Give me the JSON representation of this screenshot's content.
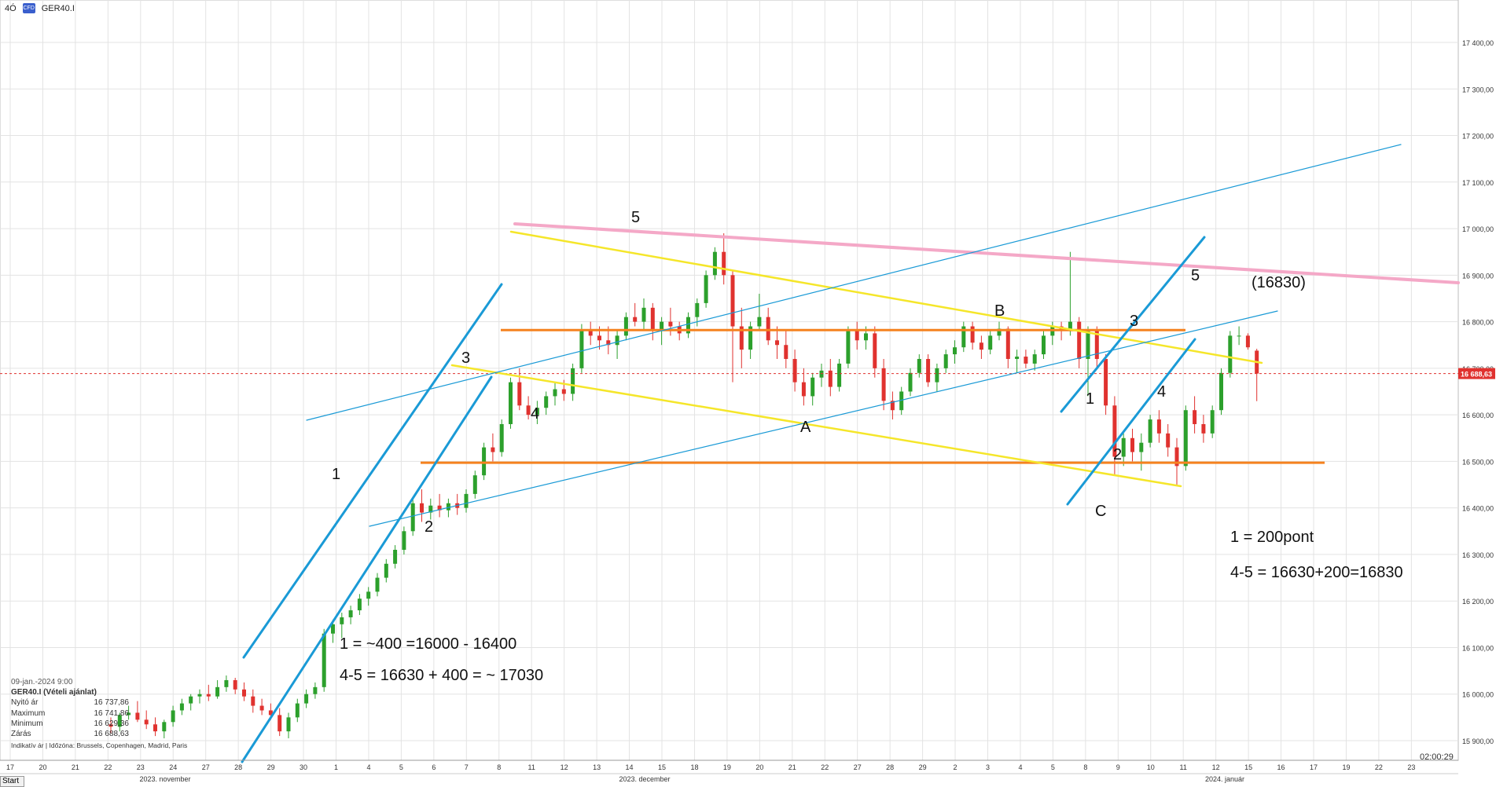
{
  "window": {
    "timeframe": "4Ó",
    "symbol": "GER40.I",
    "logo_icon": "cfd-logo-icon",
    "clock": "02:00:29",
    "start_button": "Start"
  },
  "info_panel": {
    "datetime": "09-jan.-2024 9:00",
    "instrument": "GER40.I (Vételi ajánlat)",
    "rows": [
      {
        "label": "Nyitó ár",
        "value": "16 737,86"
      },
      {
        "label": "Maximum",
        "value": "16 741,86"
      },
      {
        "label": "Minimum",
        "value": "16 629,36"
      },
      {
        "label": "Zárás",
        "value": "16 688,63"
      }
    ],
    "footer": "Indikatív ár | Időzóna: Brussels, Copenhagen, Madrid, Paris"
  },
  "chart_data": {
    "type": "candlestick",
    "symbol": "GER40.I",
    "price_axis": {
      "min": 15850,
      "max": 17450,
      "ticks": [
        15900,
        16000,
        16100,
        16200,
        16300,
        16400,
        16500,
        16600,
        16700,
        16800,
        16900,
        17000,
        17100,
        17200,
        17300,
        17400
      ],
      "tick_labels": [
        "15 900,00",
        "16 000,00",
        "16 100,00",
        "16 200,00",
        "16 300,00",
        "16 400,00",
        "16 500,00",
        "16 600,00",
        "16 700,00",
        "16 800,00",
        "16 900,00",
        "17 000,00",
        "17 100,00",
        "17 200,00",
        "17 300,00",
        "17 400,00"
      ]
    },
    "time_axis": {
      "day_labels": [
        "17",
        "20",
        "21",
        "22",
        "23",
        "24",
        "27",
        "28",
        "29",
        "30",
        "1",
        "4",
        "5",
        "6",
        "7",
        "8",
        "11",
        "12",
        "13",
        "14",
        "15",
        "18",
        "19",
        "20",
        "21",
        "22",
        "27",
        "28",
        "29",
        "2",
        "3",
        "4",
        "5",
        "8",
        "9",
        "10",
        "11",
        "12",
        "15",
        "16",
        "17",
        "19",
        "22",
        "23"
      ],
      "month_labels": [
        "2023. november",
        "2023. december",
        "2024. január"
      ]
    },
    "current_price": 16688.63,
    "current_price_label": "16 688,63",
    "candles": [
      [
        0,
        15935,
        15950,
        15915,
        15930
      ],
      [
        1,
        15930,
        15960,
        15920,
        15955
      ],
      [
        2,
        15955,
        15975,
        15945,
        15960
      ],
      [
        3,
        15960,
        15985,
        15940,
        15945
      ],
      [
        4,
        15945,
        15965,
        15925,
        15935
      ],
      [
        5,
        15935,
        15950,
        15910,
        15920
      ],
      [
        6,
        15920,
        15945,
        15905,
        15940
      ],
      [
        7,
        15940,
        15975,
        15930,
        15965
      ],
      [
        8,
        15965,
        15990,
        15955,
        15980
      ],
      [
        9,
        15980,
        16000,
        15965,
        15995
      ],
      [
        10,
        15995,
        16010,
        15980,
        16000
      ],
      [
        11,
        16000,
        16020,
        15985,
        15995
      ],
      [
        12,
        15995,
        16030,
        15990,
        16015
      ],
      [
        13,
        16015,
        16040,
        16005,
        16030
      ],
      [
        14,
        16030,
        16035,
        16000,
        16010
      ],
      [
        15,
        16010,
        16025,
        15985,
        15995
      ],
      [
        16,
        15995,
        16010,
        15960,
        15975
      ],
      [
        17,
        15975,
        15990,
        15955,
        15965
      ],
      [
        18,
        15965,
        15980,
        15945,
        15955
      ],
      [
        19,
        15955,
        15970,
        15910,
        15920
      ],
      [
        20,
        15920,
        15960,
        15905,
        15950
      ],
      [
        21,
        15950,
        15990,
        15940,
        15980
      ],
      [
        22,
        15980,
        16010,
        15970,
        16000
      ],
      [
        23,
        16000,
        16025,
        15990,
        16015
      ],
      [
        24,
        16015,
        16140,
        16005,
        16130
      ],
      [
        25,
        16130,
        16160,
        16110,
        16150
      ],
      [
        26,
        16150,
        16175,
        16120,
        16165
      ],
      [
        27,
        16165,
        16190,
        16150,
        16180
      ],
      [
        28,
        16180,
        16215,
        16170,
        16205
      ],
      [
        29,
        16205,
        16230,
        16190,
        16220
      ],
      [
        30,
        16220,
        16260,
        16210,
        16250
      ],
      [
        31,
        16250,
        16290,
        16240,
        16280
      ],
      [
        32,
        16280,
        16320,
        16270,
        16310
      ],
      [
        33,
        16310,
        16360,
        16300,
        16350
      ],
      [
        34,
        16350,
        16420,
        16340,
        16410
      ],
      [
        35,
        16410,
        16440,
        16370,
        16390
      ],
      [
        36,
        16390,
        16420,
        16375,
        16405
      ],
      [
        37,
        16405,
        16430,
        16380,
        16395
      ],
      [
        38,
        16395,
        16420,
        16380,
        16410
      ],
      [
        39,
        16410,
        16430,
        16385,
        16400
      ],
      [
        40,
        16400,
        16440,
        16390,
        16430
      ],
      [
        41,
        16430,
        16480,
        16420,
        16470
      ],
      [
        42,
        16470,
        16540,
        16460,
        16530
      ],
      [
        43,
        16530,
        16560,
        16500,
        16520
      ],
      [
        44,
        16520,
        16590,
        16510,
        16580
      ],
      [
        45,
        16580,
        16680,
        16570,
        16670
      ],
      [
        46,
        16670,
        16700,
        16610,
        16620
      ],
      [
        47,
        16620,
        16640,
        16590,
        16600
      ],
      [
        48,
        16600,
        16630,
        16580,
        16615
      ],
      [
        49,
        16615,
        16650,
        16600,
        16640
      ],
      [
        50,
        16640,
        16670,
        16620,
        16655
      ],
      [
        51,
        16655,
        16675,
        16630,
        16645
      ],
      [
        52,
        16645,
        16710,
        16630,
        16700
      ],
      [
        53,
        16700,
        16795,
        16690,
        16780
      ],
      [
        54,
        16780,
        16800,
        16750,
        16770
      ],
      [
        55,
        16770,
        16790,
        16740,
        16760
      ],
      [
        56,
        16760,
        16790,
        16730,
        16750
      ],
      [
        57,
        16750,
        16780,
        16720,
        16770
      ],
      [
        58,
        16770,
        16820,
        16760,
        16810
      ],
      [
        59,
        16810,
        16840,
        16790,
        16800
      ],
      [
        60,
        16800,
        16850,
        16780,
        16830
      ],
      [
        61,
        16830,
        16840,
        16760,
        16780
      ],
      [
        62,
        16780,
        16810,
        16750,
        16800
      ],
      [
        63,
        16800,
        16830,
        16770,
        16790
      ],
      [
        64,
        16790,
        16800,
        16760,
        16775
      ],
      [
        65,
        16775,
        16820,
        16765,
        16810
      ],
      [
        66,
        16810,
        16850,
        16790,
        16840
      ],
      [
        67,
        16840,
        16910,
        16830,
        16900
      ],
      [
        68,
        16900,
        16960,
        16890,
        16950
      ],
      [
        69,
        16950,
        16990,
        16880,
        16900
      ],
      [
        70,
        16900,
        16910,
        16670,
        16790
      ],
      [
        71,
        16790,
        16830,
        16700,
        16740
      ],
      [
        72,
        16740,
        16800,
        16720,
        16790
      ],
      [
        73,
        16790,
        16860,
        16780,
        16810
      ],
      [
        74,
        16810,
        16830,
        16750,
        16760
      ],
      [
        75,
        16760,
        16790,
        16720,
        16750
      ],
      [
        76,
        16750,
        16780,
        16700,
        16720
      ],
      [
        77,
        16720,
        16740,
        16650,
        16670
      ],
      [
        78,
        16670,
        16700,
        16620,
        16640
      ],
      [
        79,
        16640,
        16690,
        16620,
        16680
      ],
      [
        80,
        16680,
        16710,
        16660,
        16695
      ],
      [
        81,
        16695,
        16720,
        16640,
        16660
      ],
      [
        82,
        16660,
        16720,
        16650,
        16710
      ],
      [
        83,
        16710,
        16790,
        16700,
        16780
      ],
      [
        84,
        16780,
        16800,
        16740,
        16760
      ],
      [
        85,
        16760,
        16790,
        16740,
        16775
      ],
      [
        86,
        16775,
        16790,
        16680,
        16700
      ],
      [
        87,
        16700,
        16720,
        16610,
        16630
      ],
      [
        88,
        16630,
        16650,
        16590,
        16610
      ],
      [
        89,
        16610,
        16660,
        16600,
        16650
      ],
      [
        90,
        16650,
        16700,
        16640,
        16690
      ],
      [
        91,
        16690,
        16730,
        16680,
        16720
      ],
      [
        92,
        16720,
        16730,
        16660,
        16670
      ],
      [
        93,
        16670,
        16710,
        16650,
        16700
      ],
      [
        94,
        16700,
        16740,
        16690,
        16730
      ],
      [
        95,
        16730,
        16760,
        16710,
        16745
      ],
      [
        96,
        16745,
        16800,
        16735,
        16790
      ],
      [
        97,
        16790,
        16800,
        16740,
        16755
      ],
      [
        98,
        16755,
        16770,
        16720,
        16740
      ],
      [
        99,
        16740,
        16780,
        16730,
        16770
      ],
      [
        100,
        16770,
        16800,
        16760,
        16785
      ],
      [
        101,
        16785,
        16790,
        16700,
        16720
      ],
      [
        102,
        16720,
        16740,
        16690,
        16725
      ],
      [
        103,
        16725,
        16740,
        16700,
        16710
      ],
      [
        104,
        16710,
        16740,
        16695,
        16730
      ],
      [
        105,
        16730,
        16780,
        16720,
        16770
      ],
      [
        106,
        16770,
        16800,
        16750,
        16790
      ],
      [
        107,
        16790,
        16800,
        16760,
        16780
      ],
      [
        108,
        16780,
        16950,
        16770,
        16800
      ],
      [
        109,
        16800,
        16810,
        16700,
        16720
      ],
      [
        110,
        16720,
        16790,
        16640,
        16780
      ],
      [
        111,
        16780,
        16790,
        16700,
        16720
      ],
      [
        112,
        16720,
        16730,
        16600,
        16620
      ],
      [
        113,
        16620,
        16640,
        16470,
        16510
      ],
      [
        114,
        16510,
        16560,
        16490,
        16550
      ],
      [
        115,
        16550,
        16570,
        16500,
        16520
      ],
      [
        116,
        16520,
        16560,
        16480,
        16540
      ],
      [
        117,
        16540,
        16600,
        16530,
        16590
      ],
      [
        118,
        16590,
        16610,
        16540,
        16560
      ],
      [
        119,
        16560,
        16580,
        16510,
        16530
      ],
      [
        120,
        16530,
        16550,
        16450,
        16490
      ],
      [
        121,
        16490,
        16620,
        16480,
        16610
      ],
      [
        122,
        16610,
        16640,
        16560,
        16580
      ],
      [
        123,
        16580,
        16600,
        16540,
        16560
      ],
      [
        124,
        16560,
        16620,
        16550,
        16610
      ],
      [
        125,
        16610,
        16700,
        16600,
        16690
      ],
      [
        126,
        16690,
        16780,
        16680,
        16770
      ],
      [
        127,
        16770,
        16790,
        16750,
        16770
      ],
      [
        128,
        16770,
        16775,
        16740,
        16745
      ],
      [
        129,
        16737.86,
        16741.86,
        16629.36,
        16688.63
      ]
    ],
    "horizontal_levels": [
      {
        "name": "upper-range",
        "price": 16782,
        "color": "#f5821f"
      },
      {
        "name": "lower-range",
        "price": 16497,
        "color": "#f5821f"
      }
    ],
    "annotations": [
      "1",
      "2",
      "3",
      "4",
      "5",
      "A",
      "B",
      "C",
      "1",
      "2",
      "3",
      "4",
      "5",
      "(16830)"
    ],
    "notes": [
      "1 = ~400 =16000 - 16400",
      "4-5 = 16630 + 400 = ~ 17030",
      "1 = 200pont",
      "4-5 = 16630+200=16830"
    ]
  }
}
